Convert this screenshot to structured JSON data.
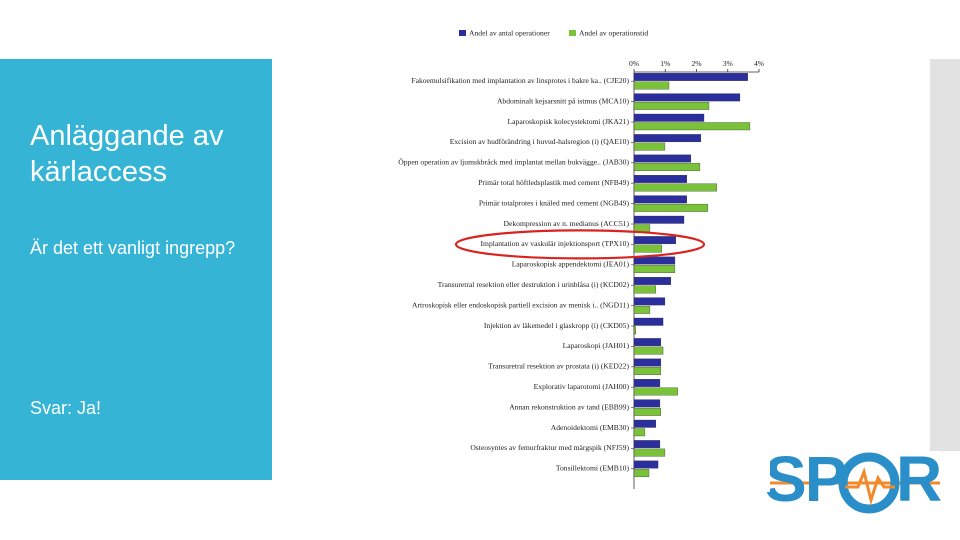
{
  "slide": {
    "title": "Anläggande av kärlaccess",
    "question": "Är det ett vanligt ingrepp?",
    "answer": "Svar: Ja!",
    "logo": [
      "SP",
      "R"
    ]
  },
  "chart_data": {
    "type": "hbar",
    "categories": [
      "Fakoemulsifikation med implantation av linsprotes i bakre ka.. (CJE20)",
      "Abdominalt kejsarsnitt på istmus (MCA10)",
      "Laparoskopisk kolecystektomi (JKA21)",
      "Excision av hudförändring i huvud-halsregion (i) (QAE10)",
      "Öppen operation av ljumskbråck med implantat mellan bukvägge.. (JAB30)",
      "Primär total höftledsplastik med cement (NFB49)",
      "Primär totalprotes i knäled med cement (NGB49)",
      "Dekompression av n. medianus (ACC51)",
      "Implantation av vaskulär injektionsport (TPX10)",
      "Laparoskopisk appendektomi (JEA01)",
      "Transuretral resektion eller destruktion i urinblåsa (i) (KCD02)",
      "Artroskopisk eller endoskopisk partiell excision av menisk i.. (NGD11)",
      "Injektion av läkemedel i glaskropp (i) (CKD05)",
      "Laparoskopi (JAH01)",
      "Transuretral resektion av prostata (i) (KED22)",
      "Explorativ laparotomi (JAH00)",
      "Annan rekonstruktion av tand (EBB99)",
      "Adenoidektomi (EMB30)",
      "Osteosyntes av femurfraktur med märgspik (NFJ59)",
      "Tonsillektomi (EMB10)"
    ],
    "series": [
      {
        "name": "Andel av antal operationer",
        "color": "#2b2f9e",
        "values": [
          3.64,
          3.39,
          2.24,
          2.14,
          1.82,
          1.69,
          1.69,
          1.6,
          1.34,
          1.31,
          1.18,
          0.99,
          0.93,
          0.86,
          0.86,
          0.83,
          0.83,
          0.7,
          0.83,
          0.77
        ]
      },
      {
        "name": "Andel av operationstid",
        "color": "#7ac23a",
        "values": [
          1.12,
          2.4,
          3.71,
          0.99,
          2.11,
          2.65,
          2.36,
          0.51,
          0.89,
          1.31,
          0.7,
          0.51,
          0.06,
          0.93,
          0.86,
          1.4,
          0.86,
          0.35,
          0.99,
          0.48
        ]
      }
    ],
    "xlim": [
      0,
      4
    ],
    "xticks": [
      {
        "value": 0,
        "label": "0%"
      },
      {
        "value": 1,
        "label": "1%"
      },
      {
        "value": 2,
        "label": "2%"
      },
      {
        "value": 3,
        "label": "3%"
      },
      {
        "value": 4,
        "label": "4%"
      }
    ],
    "grid": false
  }
}
